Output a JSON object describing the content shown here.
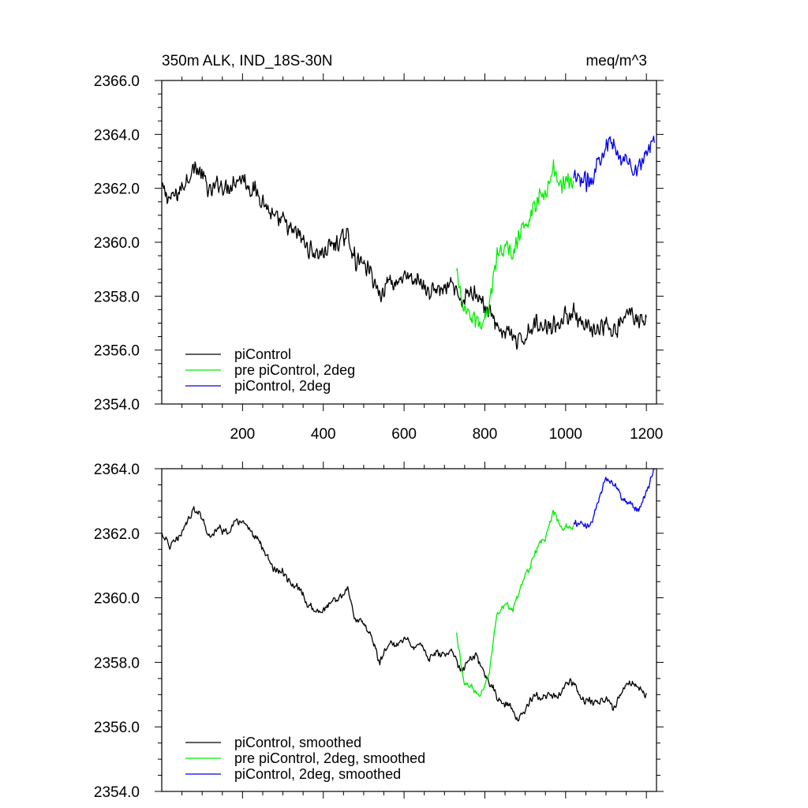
{
  "chart_data": [
    {
      "type": "line",
      "title_left": "350m ALK, IND_18S-30N",
      "title_right": "meq/m^3",
      "xlim": [
        0,
        1225
      ],
      "ylim": [
        2354.0,
        2366.0
      ],
      "x_ticks": [
        200,
        400,
        600,
        800,
        1000,
        1200
      ],
      "x_tick_labels": [
        "200",
        "400",
        "600",
        "800",
        "1000",
        "1200"
      ],
      "y_ticks": [
        2354.0,
        2356.0,
        2358.0,
        2360.0,
        2362.0,
        2364.0,
        2366.0
      ],
      "y_tick_labels": [
        "2354.0",
        "2356.0",
        "2358.0",
        "2360.0",
        "2362.0",
        "2364.0",
        "2366.0"
      ],
      "legend_position": "bottom-left",
      "series": [
        {
          "name": "piControl",
          "color": "#000000",
          "noise": 0.35,
          "x": [
            0,
            20,
            40,
            60,
            80,
            100,
            120,
            140,
            160,
            180,
            200,
            220,
            240,
            260,
            280,
            300,
            320,
            340,
            360,
            380,
            400,
            420,
            440,
            460,
            480,
            500,
            520,
            540,
            560,
            580,
            600,
            620,
            640,
            660,
            680,
            700,
            720,
            740,
            760,
            780,
            800,
            820,
            840,
            860,
            880,
            900,
            920,
            940,
            960,
            980,
            1000,
            1020,
            1040,
            1060,
            1080,
            1100,
            1120,
            1140,
            1160,
            1180,
            1200
          ],
          "y": [
            2362.0,
            2361.6,
            2361.8,
            2362.3,
            2362.8,
            2362.5,
            2361.8,
            2362.2,
            2362.0,
            2362.3,
            2362.4,
            2362.0,
            2361.8,
            2361.3,
            2360.8,
            2360.8,
            2360.4,
            2360.3,
            2359.8,
            2359.6,
            2359.6,
            2359.9,
            2360.0,
            2360.3,
            2359.3,
            2359.2,
            2358.8,
            2358.0,
            2358.6,
            2358.5,
            2358.8,
            2358.5,
            2358.6,
            2358.1,
            2358.3,
            2358.2,
            2358.4,
            2357.7,
            2358.1,
            2358.2,
            2357.6,
            2357.2,
            2356.7,
            2356.7,
            2356.2,
            2356.5,
            2357.0,
            2356.9,
            2357.0,
            2356.9,
            2357.3,
            2357.4,
            2356.8,
            2356.8,
            2356.7,
            2356.9,
            2356.6,
            2357.1,
            2357.4,
            2357.2,
            2357.0
          ]
        },
        {
          "name": "pre piControl, 2deg",
          "color": "#00ee00",
          "noise": 0.35,
          "x": [
            730,
            750,
            770,
            790,
            810,
            830,
            850,
            870,
            890,
            910,
            930,
            950,
            970,
            990,
            1010,
            1020
          ],
          "y": [
            2358.9,
            2357.3,
            2357.2,
            2357.0,
            2357.6,
            2359.5,
            2359.8,
            2359.6,
            2360.4,
            2360.9,
            2361.6,
            2361.8,
            2362.7,
            2362.2,
            2362.2,
            2362.2
          ]
        },
        {
          "name": "piControl, 2deg",
          "color": "#0000ee",
          "noise": 0.35,
          "x": [
            1020,
            1040,
            1060,
            1080,
            1100,
            1120,
            1140,
            1160,
            1180,
            1200,
            1220
          ],
          "y": [
            2362.3,
            2362.3,
            2362.2,
            2363.0,
            2363.7,
            2363.5,
            2363.1,
            2362.9,
            2362.7,
            2363.3,
            2364.0
          ]
        }
      ]
    },
    {
      "type": "line",
      "xlim": [
        0,
        1225
      ],
      "ylim": [
        2354.0,
        2364.0
      ],
      "y_ticks": [
        2354.0,
        2356.0,
        2358.0,
        2360.0,
        2362.0,
        2364.0
      ],
      "y_tick_labels": [
        "2354.0",
        "2356.0",
        "2358.0",
        "2360.0",
        "2362.0",
        "2364.0"
      ],
      "legend_position": "bottom-left",
      "series": [
        {
          "name": "piControl, smoothed",
          "color": "#000000",
          "noise": 0.12,
          "x": [
            0,
            20,
            40,
            60,
            80,
            100,
            120,
            140,
            160,
            180,
            200,
            220,
            240,
            260,
            280,
            300,
            320,
            340,
            360,
            380,
            400,
            420,
            440,
            460,
            480,
            500,
            520,
            540,
            560,
            580,
            600,
            620,
            640,
            660,
            680,
            700,
            720,
            740,
            760,
            780,
            800,
            820,
            840,
            860,
            880,
            900,
            920,
            940,
            960,
            980,
            1000,
            1020,
            1040,
            1060,
            1080,
            1100,
            1120,
            1140,
            1160,
            1180,
            1200
          ],
          "y": [
            2362.0,
            2361.6,
            2361.8,
            2362.3,
            2362.8,
            2362.5,
            2361.8,
            2362.2,
            2362.0,
            2362.3,
            2362.4,
            2362.0,
            2361.8,
            2361.3,
            2360.8,
            2360.8,
            2360.4,
            2360.3,
            2359.8,
            2359.6,
            2359.6,
            2359.9,
            2360.0,
            2360.3,
            2359.3,
            2359.2,
            2358.8,
            2358.0,
            2358.6,
            2358.5,
            2358.8,
            2358.5,
            2358.6,
            2358.1,
            2358.3,
            2358.2,
            2358.4,
            2357.7,
            2358.1,
            2358.2,
            2357.6,
            2357.2,
            2356.7,
            2356.7,
            2356.2,
            2356.5,
            2357.0,
            2356.9,
            2357.0,
            2356.9,
            2357.3,
            2357.4,
            2356.8,
            2356.8,
            2356.7,
            2356.9,
            2356.6,
            2357.1,
            2357.4,
            2357.2,
            2357.0
          ]
        },
        {
          "name": "pre piControl, 2deg, smoothed",
          "color": "#00ee00",
          "noise": 0.12,
          "x": [
            730,
            750,
            770,
            790,
            810,
            830,
            850,
            870,
            890,
            910,
            930,
            950,
            970,
            990,
            1010,
            1020
          ],
          "y": [
            2358.9,
            2357.3,
            2357.2,
            2357.0,
            2357.6,
            2359.5,
            2359.8,
            2359.6,
            2360.4,
            2360.9,
            2361.6,
            2361.8,
            2362.7,
            2362.2,
            2362.2,
            2362.2
          ]
        },
        {
          "name": "piControl, 2deg, smoothed",
          "color": "#0000ee",
          "noise": 0.12,
          "x": [
            1020,
            1040,
            1060,
            1080,
            1100,
            1120,
            1140,
            1160,
            1180,
            1200,
            1220
          ],
          "y": [
            2362.3,
            2362.3,
            2362.2,
            2363.0,
            2363.7,
            2363.5,
            2363.1,
            2362.9,
            2362.7,
            2363.3,
            2364.0
          ]
        }
      ]
    }
  ]
}
